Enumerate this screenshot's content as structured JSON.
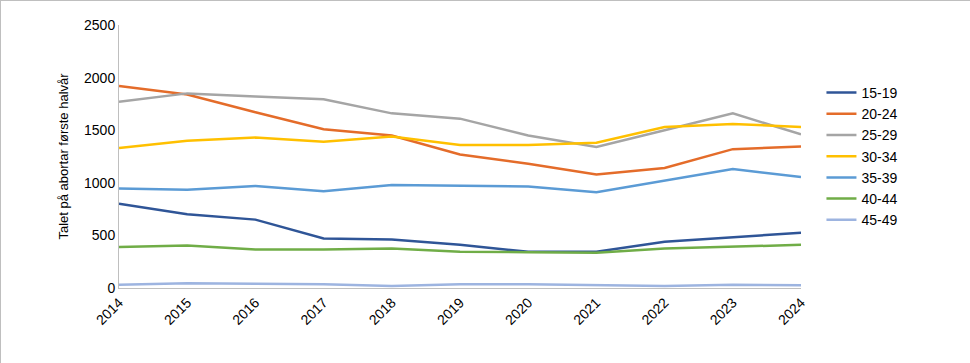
{
  "chart_data": {
    "type": "line",
    "y_label": "Talet på abortar første halvår",
    "categories": [
      "2014",
      "2015",
      "2016",
      "2017",
      "2018",
      "2019",
      "2020",
      "2021",
      "2022",
      "2023",
      "2024"
    ],
    "series": [
      {
        "name": "15-19",
        "color": "#2f5597",
        "values": [
          800,
          700,
          650,
          470,
          460,
          410,
          345,
          345,
          440,
          480,
          525
        ]
      },
      {
        "name": "20-24",
        "color": "#e46c2a",
        "values": [
          1920,
          1840,
          1670,
          1510,
          1450,
          1270,
          1180,
          1080,
          1140,
          1320,
          1345
        ]
      },
      {
        "name": "25-29",
        "color": "#a5a5a5",
        "values": [
          1770,
          1850,
          1820,
          1795,
          1660,
          1610,
          1450,
          1340,
          1500,
          1660,
          1460
        ]
      },
      {
        "name": "30-34",
        "color": "#ffc000",
        "values": [
          1330,
          1400,
          1430,
          1390,
          1440,
          1360,
          1360,
          1380,
          1530,
          1560,
          1530
        ]
      },
      {
        "name": "35-39",
        "color": "#5b9bd5",
        "values": [
          945,
          935,
          970,
          920,
          980,
          970,
          965,
          910,
          1020,
          1130,
          1055
        ]
      },
      {
        "name": "40-44",
        "color": "#70ad47",
        "values": [
          390,
          405,
          365,
          365,
          375,
          345,
          340,
          335,
          375,
          390,
          410
        ]
      },
      {
        "name": "45-49",
        "color": "#9db4e0",
        "values": [
          30,
          45,
          40,
          35,
          20,
          35,
          35,
          25,
          20,
          30,
          25
        ]
      }
    ],
    "ylim": [
      0,
      2500
    ],
    "yticks": [
      0,
      500,
      1000,
      1500,
      2000,
      2500
    ],
    "grid": false,
    "legend": "right"
  }
}
